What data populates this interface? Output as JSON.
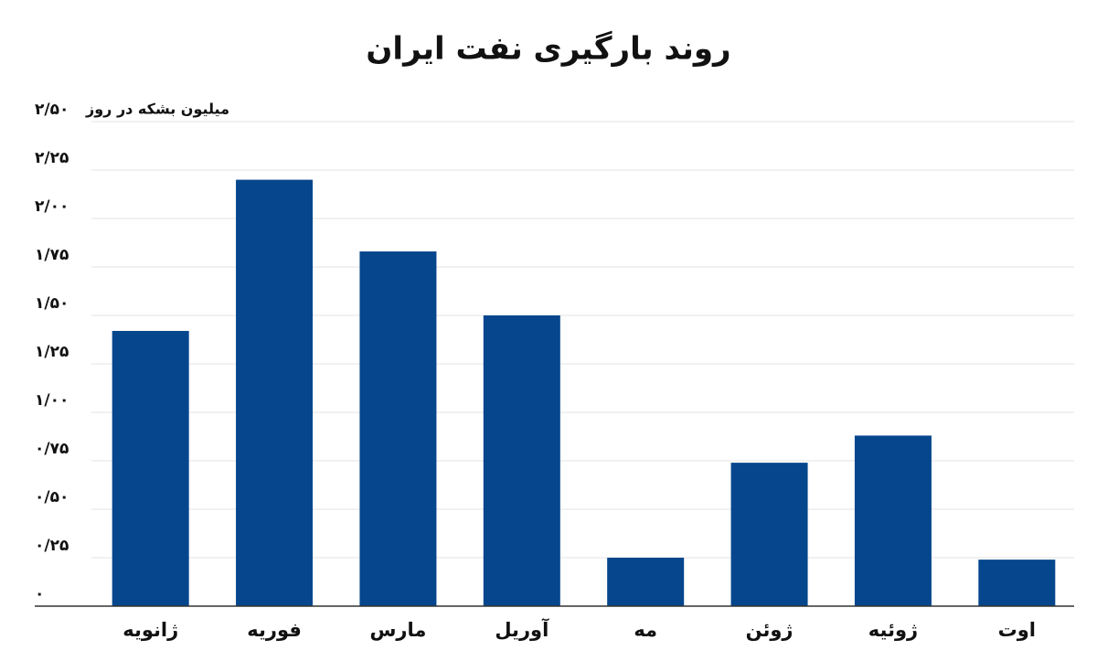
{
  "chart_data": {
    "type": "bar",
    "title": "روند بارگیری نفت ایران",
    "y_label": "میلیون بشکه در روز",
    "categories": [
      "ژانویه",
      "فوریه",
      "مارس",
      "آوریل",
      "مه",
      "ژوئن",
      "ژوئیه",
      "اوت"
    ],
    "values": [
      1.42,
      2.2,
      1.83,
      1.5,
      0.25,
      0.74,
      0.88,
      0.24
    ],
    "color": "#05468d",
    "ylim": [
      0,
      2.5
    ],
    "yticks": [
      {
        "value": 0,
        "label": "۰"
      },
      {
        "value": 0.25,
        "label": "۰/۲۵"
      },
      {
        "value": 0.5,
        "label": "۰/۵۰"
      },
      {
        "value": 0.75,
        "label": "۰/۷۵"
      },
      {
        "value": 1,
        "label": "۱/۰۰"
      },
      {
        "value": 1.25,
        "label": "۱/۲۵"
      },
      {
        "value": 1.5,
        "label": "۱/۵۰"
      },
      {
        "value": 1.75,
        "label": "۱/۷۵"
      },
      {
        "value": 2,
        "label": "۲/۰۰"
      },
      {
        "value": 2.25,
        "label": "۲/۲۵"
      },
      {
        "value": 2.5,
        "label": "۲/۵۰"
      }
    ],
    "grid": true
  }
}
